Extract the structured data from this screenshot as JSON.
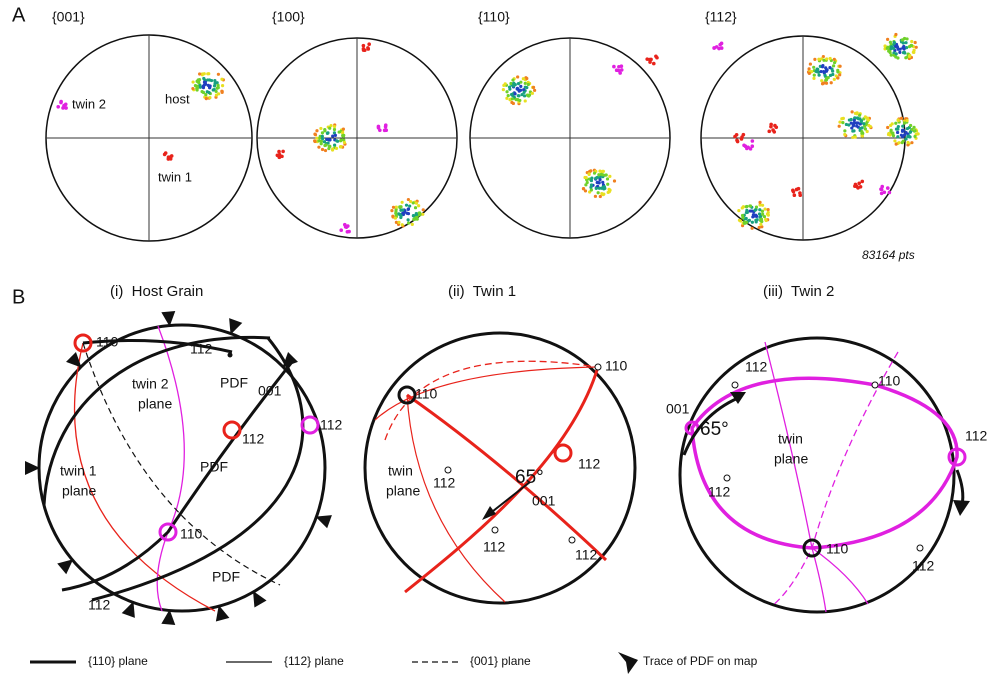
{
  "figure": {
    "panel_a": {
      "label": "A",
      "pole_figures": [
        {
          "title": "{001}",
          "annotations": [
            "twin 2",
            "host",
            "twin 1"
          ]
        },
        {
          "title": "{100}"
        },
        {
          "title": "{110}"
        },
        {
          "title": "{112}"
        }
      ],
      "point_count": "83164 pts"
    },
    "panel_b": {
      "label": "B",
      "projections": [
        {
          "title": "(i)  Host Grain",
          "labels": [
            "110",
            "112",
            "PDF",
            "001",
            "twin 2",
            "plane",
            "112",
            "112",
            "PDF",
            "twin 1",
            "plane",
            "110",
            "PDF",
            "112"
          ]
        },
        {
          "title": "(ii)  Twin 1",
          "labels": [
            "110",
            "110",
            "twin",
            "plane",
            "112",
            "112",
            "65°",
            "001",
            "112",
            "112"
          ]
        },
        {
          "title": "(iii)  Twin 2",
          "labels": [
            "001",
            "65°",
            "112",
            "110",
            "twin",
            "plane",
            "112",
            "112",
            "110",
            "112"
          ]
        }
      ]
    },
    "legend": [
      "{110} plane",
      "{112} plane",
      "{001} plane",
      "Trace of PDF on map"
    ]
  }
}
